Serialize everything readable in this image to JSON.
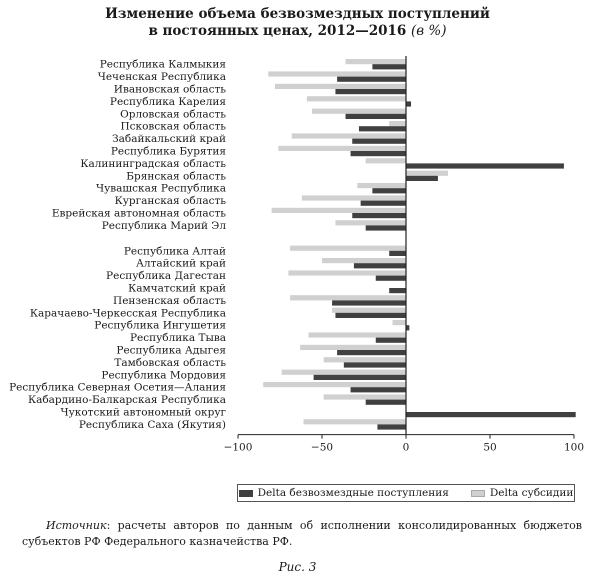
{
  "title": {
    "line1": "Изменение объема безвозмездных поступлений",
    "line2": "в постоянных ценах, 2012—2016",
    "unit": "(в %)"
  },
  "legend": {
    "items": [
      {
        "label": "Delta безвозмездные поступления",
        "color": "#404040"
      },
      {
        "label": "Delta субсидии",
        "color": "#d0d0d0"
      }
    ]
  },
  "source": {
    "label": "Источник",
    "text": ": расчеты авторов по данным об исполнении консолидированных бюджетов субъектов РФ Федерального казначейства РФ."
  },
  "caption": "Рис. 3",
  "chart_data": {
    "type": "bar",
    "orientation": "horizontal",
    "xlim": [
      -100,
      100
    ],
    "x_ticks": [
      -100,
      -50,
      0,
      50,
      100
    ],
    "groups": [
      [
        "Республика Калмыкия",
        "Чеченская Республика",
        "Ивановская область",
        "Республика Карелия",
        "Орловская область",
        "Псковская область",
        "Забайкальский край",
        "Республика Бурятия",
        "Калининградская область",
        "Брянская область",
        "Чувашская Республика",
        "Курганская область",
        "Еврейская автономная область",
        "Республика Марий Эл"
      ],
      [
        "Республика Алтай",
        "Алтайский край",
        "Республика Дагестан",
        "Камчатский край",
        "Пензенская область",
        "Карачаево-Черкесская Республика",
        "Республика Ингушетия",
        "Республика Тыва",
        "Республика Адыгея",
        "Тамбовская область",
        "Республика Мордовия",
        "Республика Северная Осетия—Алания",
        "Кабардино-Балкарская Республика",
        "Чукотский автономный округ",
        "Республика Саха (Якутия)"
      ]
    ],
    "series": [
      {
        "name": "Delta безвозмездные поступления",
        "color": "#404040",
        "values": [
          -20,
          -41,
          -42,
          3,
          -36,
          -28,
          -32,
          -33,
          94,
          19,
          -20,
          -27,
          -32,
          -24,
          -10,
          -31,
          -18,
          -10,
          -44,
          -42,
          2,
          -18,
          -41,
          -37,
          -55,
          -33,
          -24,
          101,
          -17
        ]
      },
      {
        "name": "Delta субсидии",
        "color": "#d0d0d0",
        "values": [
          -36,
          -82,
          -78,
          -59,
          -56,
          -10,
          -68,
          -76,
          -24,
          25,
          -29,
          -62,
          -80,
          -42,
          -69,
          -50,
          -70,
          0,
          -69,
          -44,
          -8,
          -58,
          -63,
          -49,
          -74,
          -85,
          -49,
          0,
          -61
        ]
      }
    ]
  }
}
